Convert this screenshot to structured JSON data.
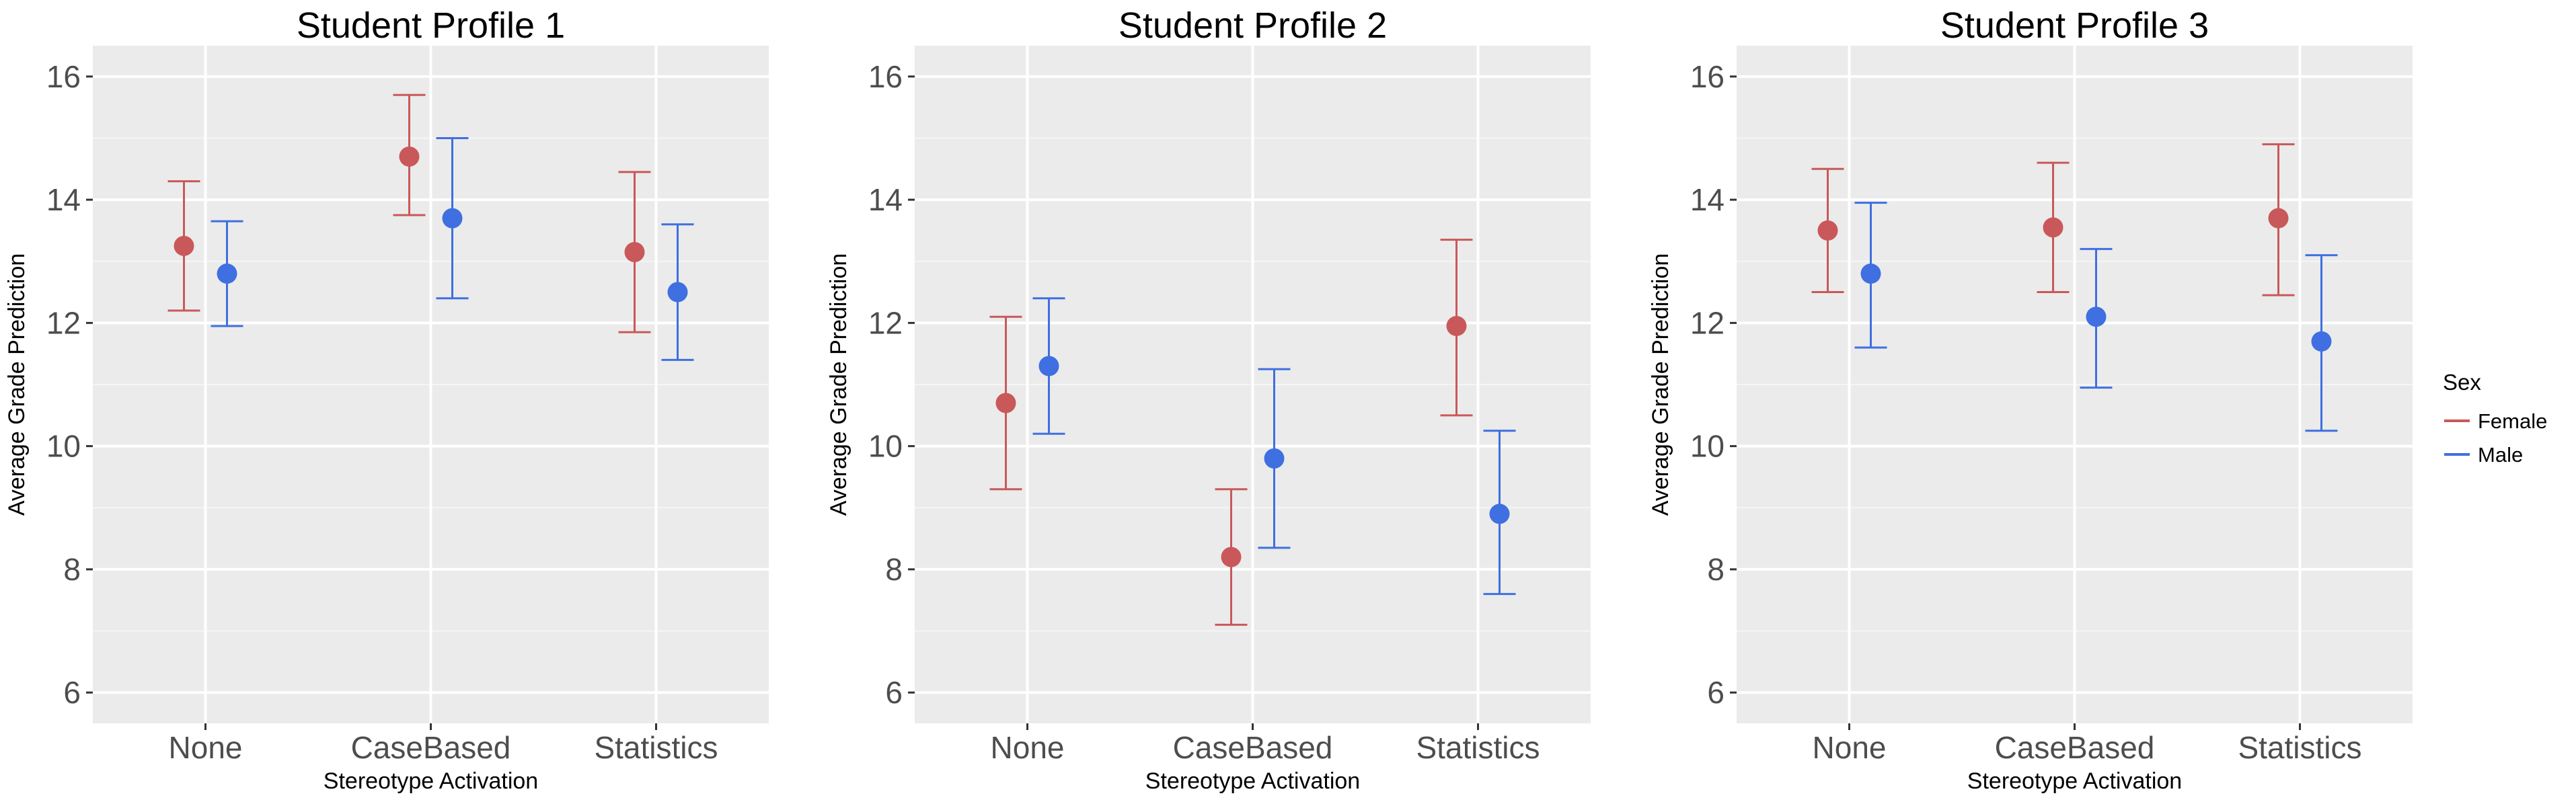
{
  "chart_data": {
    "type": "errorbar",
    "ylim": [
      5.5,
      16.5
    ],
    "yticks": [
      6,
      8,
      10,
      12,
      14,
      16
    ],
    "xlabel": "Stereotype Activation",
    "ylabel": "Average Grade Prediction",
    "categories": [
      "None",
      "CaseBased",
      "Statistics"
    ],
    "legend": {
      "title": "Sex",
      "placement": "right",
      "entries": [
        {
          "label": "Female",
          "color": "#c9585a"
        },
        {
          "label": "Male",
          "color": "#3f6fe0"
        }
      ]
    },
    "grid": true,
    "panels": [
      {
        "title": "Student Profile 1",
        "series": [
          {
            "name": "Female",
            "mean": [
              13.25,
              14.7,
              13.15
            ],
            "lower": [
              12.2,
              13.75,
              11.85
            ],
            "upper": [
              14.3,
              15.7,
              14.45
            ]
          },
          {
            "name": "Male",
            "mean": [
              12.8,
              13.7,
              12.5
            ],
            "lower": [
              11.95,
              12.4,
              11.4
            ],
            "upper": [
              13.65,
              15.0,
              13.6
            ]
          }
        ]
      },
      {
        "title": "Student Profile 2",
        "series": [
          {
            "name": "Female",
            "mean": [
              10.7,
              8.2,
              11.95
            ],
            "lower": [
              9.3,
              7.1,
              10.5
            ],
            "upper": [
              12.1,
              9.3,
              13.35
            ]
          },
          {
            "name": "Male",
            "mean": [
              11.3,
              9.8,
              8.9
            ],
            "lower": [
              10.2,
              8.35,
              7.6
            ],
            "upper": [
              12.4,
              11.25,
              10.25
            ]
          }
        ]
      },
      {
        "title": "Student Profile 3",
        "series": [
          {
            "name": "Female",
            "mean": [
              13.5,
              13.55,
              13.7
            ],
            "lower": [
              12.5,
              12.5,
              12.45
            ],
            "upper": [
              14.5,
              14.6,
              14.9
            ]
          },
          {
            "name": "Male",
            "mean": [
              12.8,
              12.1,
              11.7
            ],
            "lower": [
              11.6,
              10.95,
              10.25
            ],
            "upper": [
              13.95,
              13.2,
              13.1
            ]
          }
        ]
      }
    ]
  }
}
